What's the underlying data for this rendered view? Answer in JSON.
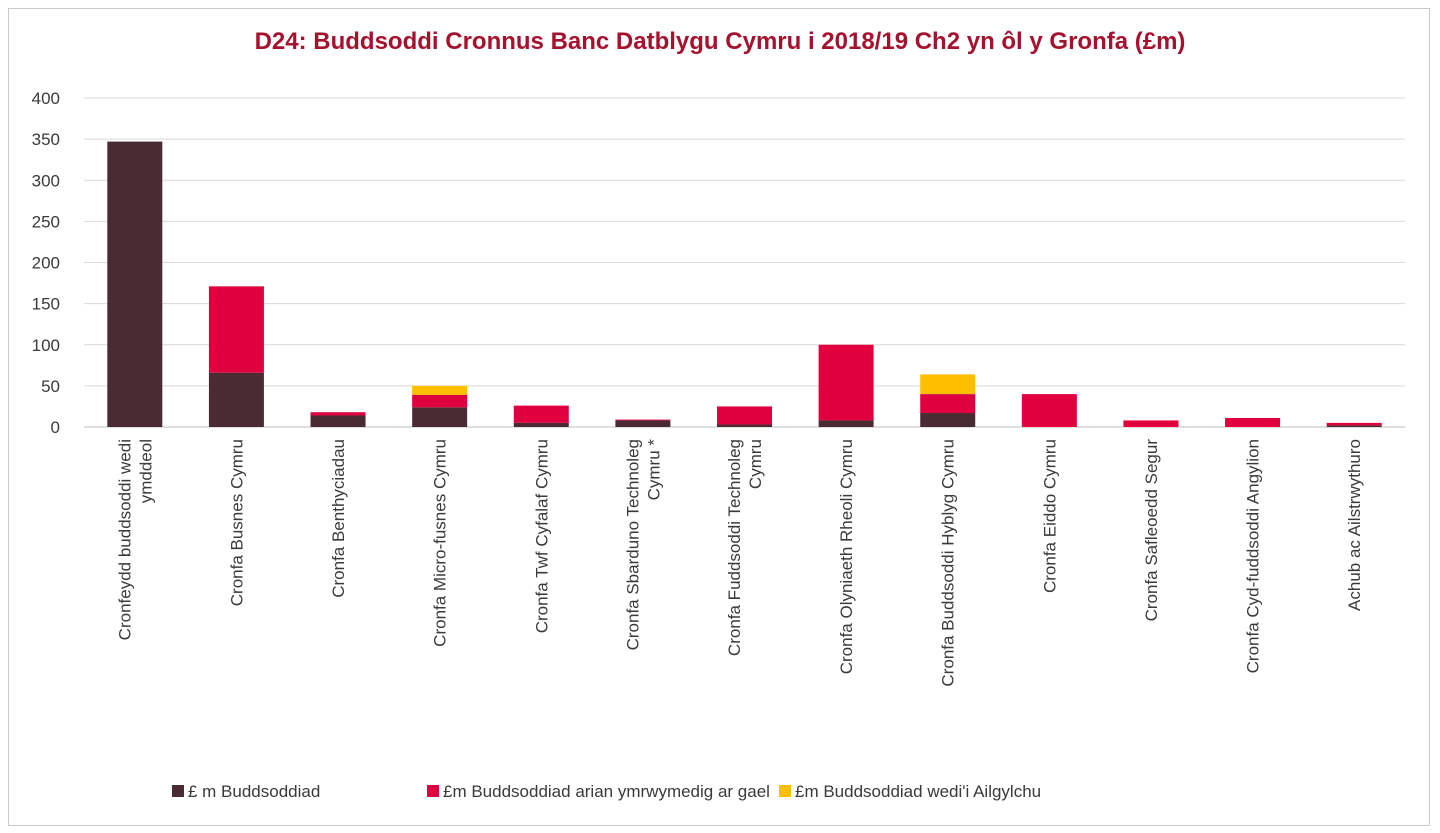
{
  "chart_data": {
    "type": "bar",
    "stacked": true,
    "title": "D24: Buddsoddi Cronnus Banc Datblygu Cymru i 2018/19 Ch2 yn ôl y Gronfa (£m)",
    "xlabel": "",
    "ylabel": "",
    "ylim": [
      0,
      400
    ],
    "yticks": [
      0,
      50,
      100,
      150,
      200,
      250,
      300,
      350,
      400
    ],
    "grid": true,
    "legend_position": "bottom",
    "categories": [
      [
        "Cronfeydd buddsoddi wedi",
        "ymddeol"
      ],
      [
        "Cronfa Busnes Cymru"
      ],
      [
        "Cronfa Benthyciadau"
      ],
      [
        "Cronfa Micro-fusnes Cymru"
      ],
      [
        "Cronfa Twf Cyfalaf Cymru"
      ],
      [
        "Cronfa Sbarduno Technoleg",
        "Cymru *"
      ],
      [
        "Cronfa Fuddsoddi Technoleg",
        "Cymru"
      ],
      [
        "Cronfa Olyniaeth Rheoli Cymru"
      ],
      [
        "Cronfa Buddsoddi Hyblyg Cymru"
      ],
      [
        "Cronfa Eiddo Cymru"
      ],
      [
        "Cronfa Safleoedd Segur"
      ],
      [
        "Cronfa Cyd-fuddsoddi Angylion"
      ],
      [
        "Achub ac Ailstrwythuro"
      ]
    ],
    "series": [
      {
        "name": "£ m Buddsoddiad",
        "color": "#4a2a33",
        "values": [
          347,
          66,
          14,
          24,
          5,
          8,
          3,
          8,
          17,
          0,
          0,
          0,
          2
        ]
      },
      {
        "name": "£m Buddsoddiad arian ymrwymedig ar gael",
        "color": "#e0003f",
        "values": [
          0,
          105,
          4,
          15,
          21,
          1,
          22,
          92,
          23,
          40,
          8,
          11,
          3
        ]
      },
      {
        "name": "£m Buddsoddiad wedi'i Ailgylchu",
        "color": "#ffbf00",
        "values": [
          0,
          0,
          0,
          11,
          0,
          0,
          0,
          0,
          24,
          0,
          0,
          0,
          0
        ]
      }
    ]
  }
}
